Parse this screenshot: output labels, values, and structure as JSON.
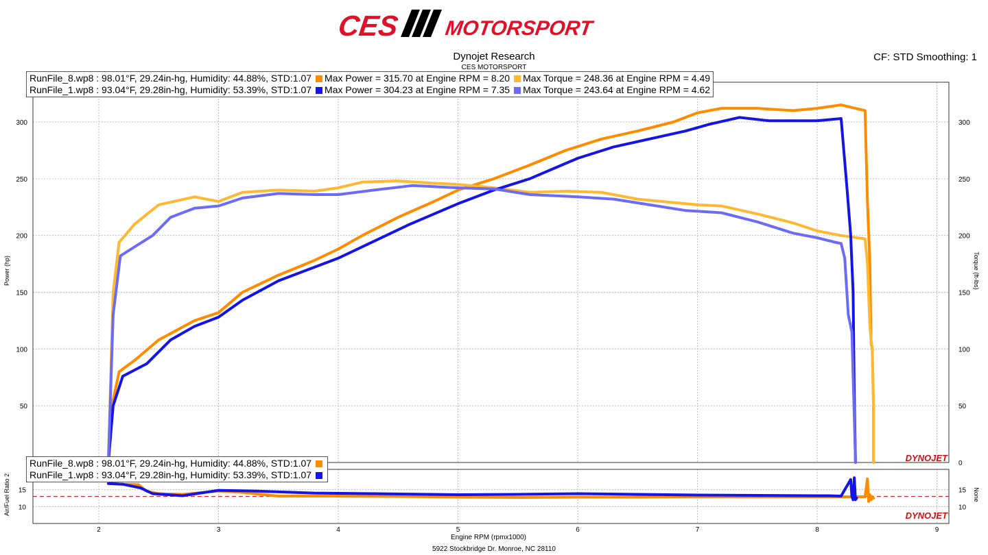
{
  "header": {
    "brand_left": "CES",
    "brand_right": "MOTORSPORT",
    "title": "Dynojet Research",
    "subtitle": "CES MOTORSPORT",
    "cf_label": "CF: STD Smoothing: 1",
    "footer": "5922 Stockbridge Dr. Monroe, NC 28110",
    "watermark": "DYNOJET"
  },
  "legend_main": [
    {
      "run": "RunFile_8.wp8 : 98.01°F, 29.24in-hg, Humidity: 44.88%, STD:1.07",
      "power": "Max Power = 315.70 at Engine RPM = 8.20",
      "torque": "Max Torque = 248.36 at Engine RPM = 4.49"
    },
    {
      "run": "RunFile_1.wp8 : 93.04°F, 29.28in-hg, Humidity: 53.39%, STD:1.07",
      "power": "Max Power = 304.23 at Engine RPM = 7.35",
      "torque": "Max Torque = 243.64 at Engine RPM = 4.62"
    }
  ],
  "legend_afr": [
    {
      "run": "RunFile_8.wp8 : 98.01°F, 29.24in-hg, Humidity: 44.88%, STD:1.07"
    },
    {
      "run": "RunFile_1.wp8 : 93.04°F, 29.28in-hg, Humidity: 53.39%, STD:1.07"
    }
  ],
  "colors": {
    "run8_power": "#ff8c00",
    "run8_torque": "#ffb833",
    "run1_power": "#1414e6",
    "run1_torque": "#6b6bf5",
    "afr_ref": "#e02020",
    "brand_red": "#e0102a"
  },
  "chart_data": [
    {
      "type": "line",
      "xlabel": "Engine RPM (rpmx1000)",
      "ylabel": "Power (hp)",
      "y2label": "Torque (ft-lbs)",
      "xlim": [
        1.45,
        9.1
      ],
      "ylim": [
        0,
        335
      ],
      "y2lim": [
        0,
        335
      ],
      "xticks": [
        2,
        3,
        4,
        5,
        6,
        7,
        8,
        9
      ],
      "yticks": [
        50,
        100,
        150,
        200,
        250,
        300
      ],
      "y2ticks": [
        0,
        50,
        100,
        150,
        200,
        250,
        300
      ],
      "grid": true,
      "legend_position": "top-left",
      "series": [
        {
          "name": "RunFile_8.wp8 Power",
          "color_key": "run8_power",
          "x": [
            2.08,
            2.12,
            2.17,
            2.3,
            2.5,
            2.8,
            3.0,
            3.2,
            3.5,
            3.8,
            4.0,
            4.2,
            4.5,
            4.8,
            5.0,
            5.3,
            5.6,
            5.9,
            6.2,
            6.5,
            6.8,
            7.0,
            7.2,
            7.5,
            7.8,
            8.0,
            8.2,
            8.4,
            8.42,
            8.44,
            8.45,
            8.46,
            8.47,
            8.47
          ],
          "y": [
            0,
            55,
            80,
            90,
            108,
            125,
            132,
            150,
            165,
            178,
            188,
            200,
            216,
            230,
            240,
            250,
            262,
            275,
            285,
            292,
            300,
            308,
            312,
            312,
            310,
            312,
            315,
            310,
            230,
            175,
            105,
            100,
            50,
            0
          ]
        },
        {
          "name": "RunFile_8.wp8 Torque",
          "color_key": "run8_torque",
          "x": [
            2.08,
            2.12,
            2.17,
            2.3,
            2.5,
            2.8,
            3.0,
            3.2,
            3.5,
            3.8,
            4.0,
            4.2,
            4.49,
            4.8,
            5.0,
            5.3,
            5.6,
            5.9,
            6.2,
            6.5,
            6.8,
            7.0,
            7.2,
            7.5,
            7.8,
            8.0,
            8.2,
            8.4,
            8.42,
            8.44,
            8.45,
            8.46,
            8.47,
            8.47
          ],
          "y": [
            0,
            150,
            194,
            210,
            227,
            234,
            230,
            238,
            240,
            239,
            242,
            247,
            248,
            246,
            245,
            242,
            238,
            239,
            238,
            232,
            229,
            227,
            226,
            219,
            211,
            204,
            200,
            197,
            175,
            120,
            108,
            100,
            50,
            0
          ]
        },
        {
          "name": "RunFile_1.wp8 Power",
          "color_key": "run1_power",
          "x": [
            2.08,
            2.12,
            2.2,
            2.4,
            2.6,
            2.8,
            3.0,
            3.2,
            3.5,
            3.8,
            4.0,
            4.3,
            4.6,
            5.0,
            5.3,
            5.6,
            6.0,
            6.3,
            6.6,
            6.9,
            7.1,
            7.35,
            7.6,
            7.8,
            8.0,
            8.2,
            8.25,
            8.28,
            8.3,
            8.31,
            8.32
          ],
          "y": [
            0,
            50,
            76,
            87,
            108,
            120,
            128,
            143,
            160,
            172,
            180,
            195,
            210,
            228,
            240,
            250,
            268,
            278,
            285,
            292,
            298,
            304,
            301,
            301,
            301,
            303,
            240,
            200,
            150,
            60,
            0
          ]
        },
        {
          "name": "RunFile_1.wp8 Torque",
          "color_key": "run1_torque",
          "x": [
            2.08,
            2.12,
            2.18,
            2.3,
            2.45,
            2.6,
            2.8,
            3.0,
            3.2,
            3.5,
            3.8,
            4.0,
            4.3,
            4.62,
            5.0,
            5.3,
            5.6,
            6.0,
            6.3,
            6.6,
            6.9,
            7.2,
            7.5,
            7.8,
            8.0,
            8.15,
            8.2,
            8.23,
            8.26,
            8.29,
            8.31,
            8.32
          ],
          "y": [
            0,
            130,
            182,
            190,
            200,
            216,
            224,
            226,
            233,
            237,
            236,
            236,
            240,
            244,
            242,
            241,
            236,
            234,
            232,
            227,
            222,
            220,
            212,
            202,
            198,
            194,
            193,
            180,
            130,
            115,
            40,
            0
          ]
        }
      ]
    },
    {
      "type": "line",
      "xlabel": "Engine RPM (rpmx1000)",
      "ylabel": "Air/Fuel Ratio 2",
      "y2label": "None",
      "xlim": [
        1.45,
        9.1
      ],
      "ylim": [
        5,
        21
      ],
      "yticks": [
        10,
        15
      ],
      "y2ticks": [
        10,
        15
      ],
      "reference_y": 13,
      "grid": true,
      "legend_position": "top-left",
      "series": [
        {
          "name": "RunFile_8.wp8 AFR",
          "color_key": "run8_power",
          "x": [
            2.08,
            2.2,
            2.33,
            2.4,
            2.5,
            2.7,
            3.0,
            3.2,
            3.5,
            4.0,
            4.5,
            5.0,
            5.5,
            6.0,
            6.5,
            7.0,
            7.5,
            8.0,
            8.4,
            8.42,
            8.43,
            8.44,
            8.45,
            8.46,
            8.47
          ],
          "y": [
            16.8,
            16.6,
            16.5,
            14.5,
            13.8,
            13.6,
            14.6,
            14.2,
            13.1,
            13.1,
            13.0,
            12.8,
            12.7,
            12.8,
            12.8,
            12.9,
            12.9,
            12.9,
            12.9,
            18.2,
            11.5,
            13.5,
            12.0,
            13.0,
            12.5
          ]
        },
        {
          "name": "RunFile_1.wp8 AFR",
          "color_key": "run1_power",
          "x": [
            2.08,
            2.2,
            2.35,
            2.45,
            2.7,
            3.0,
            3.3,
            3.8,
            4.3,
            5.0,
            5.5,
            6.0,
            6.5,
            7.0,
            7.5,
            8.0,
            8.1,
            8.2,
            8.28,
            8.29,
            8.3,
            8.31,
            8.32,
            8.33
          ],
          "y": [
            16.8,
            16.6,
            15.5,
            13.8,
            13.2,
            14.8,
            14.6,
            14.0,
            13.8,
            13.5,
            13.6,
            13.8,
            13.6,
            13.4,
            13.3,
            13.2,
            13.2,
            13.1,
            18.0,
            13.0,
            12.0,
            18.5,
            12.0,
            12.5
          ]
        }
      ]
    }
  ]
}
